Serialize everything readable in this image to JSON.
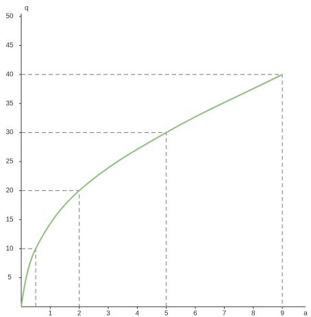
{
  "chart_data": {
    "type": "line",
    "x_label": "a",
    "y_label": "q",
    "x": [
      0,
      0.5,
      2,
      5,
      9
    ],
    "series": [
      {
        "name": "q",
        "color": "#8dc07a",
        "values": [
          0,
          10,
          20,
          30,
          40
        ]
      }
    ],
    "guide_color": "#777777",
    "xlim": [
      0,
      9.8
    ],
    "ylim": [
      0,
      50
    ],
    "xticks": [
      1,
      2,
      3,
      4,
      5,
      6,
      7,
      8,
      9
    ],
    "yticks": [
      5,
      10,
      15,
      20,
      25,
      30,
      35,
      40,
      45,
      50
    ]
  }
}
